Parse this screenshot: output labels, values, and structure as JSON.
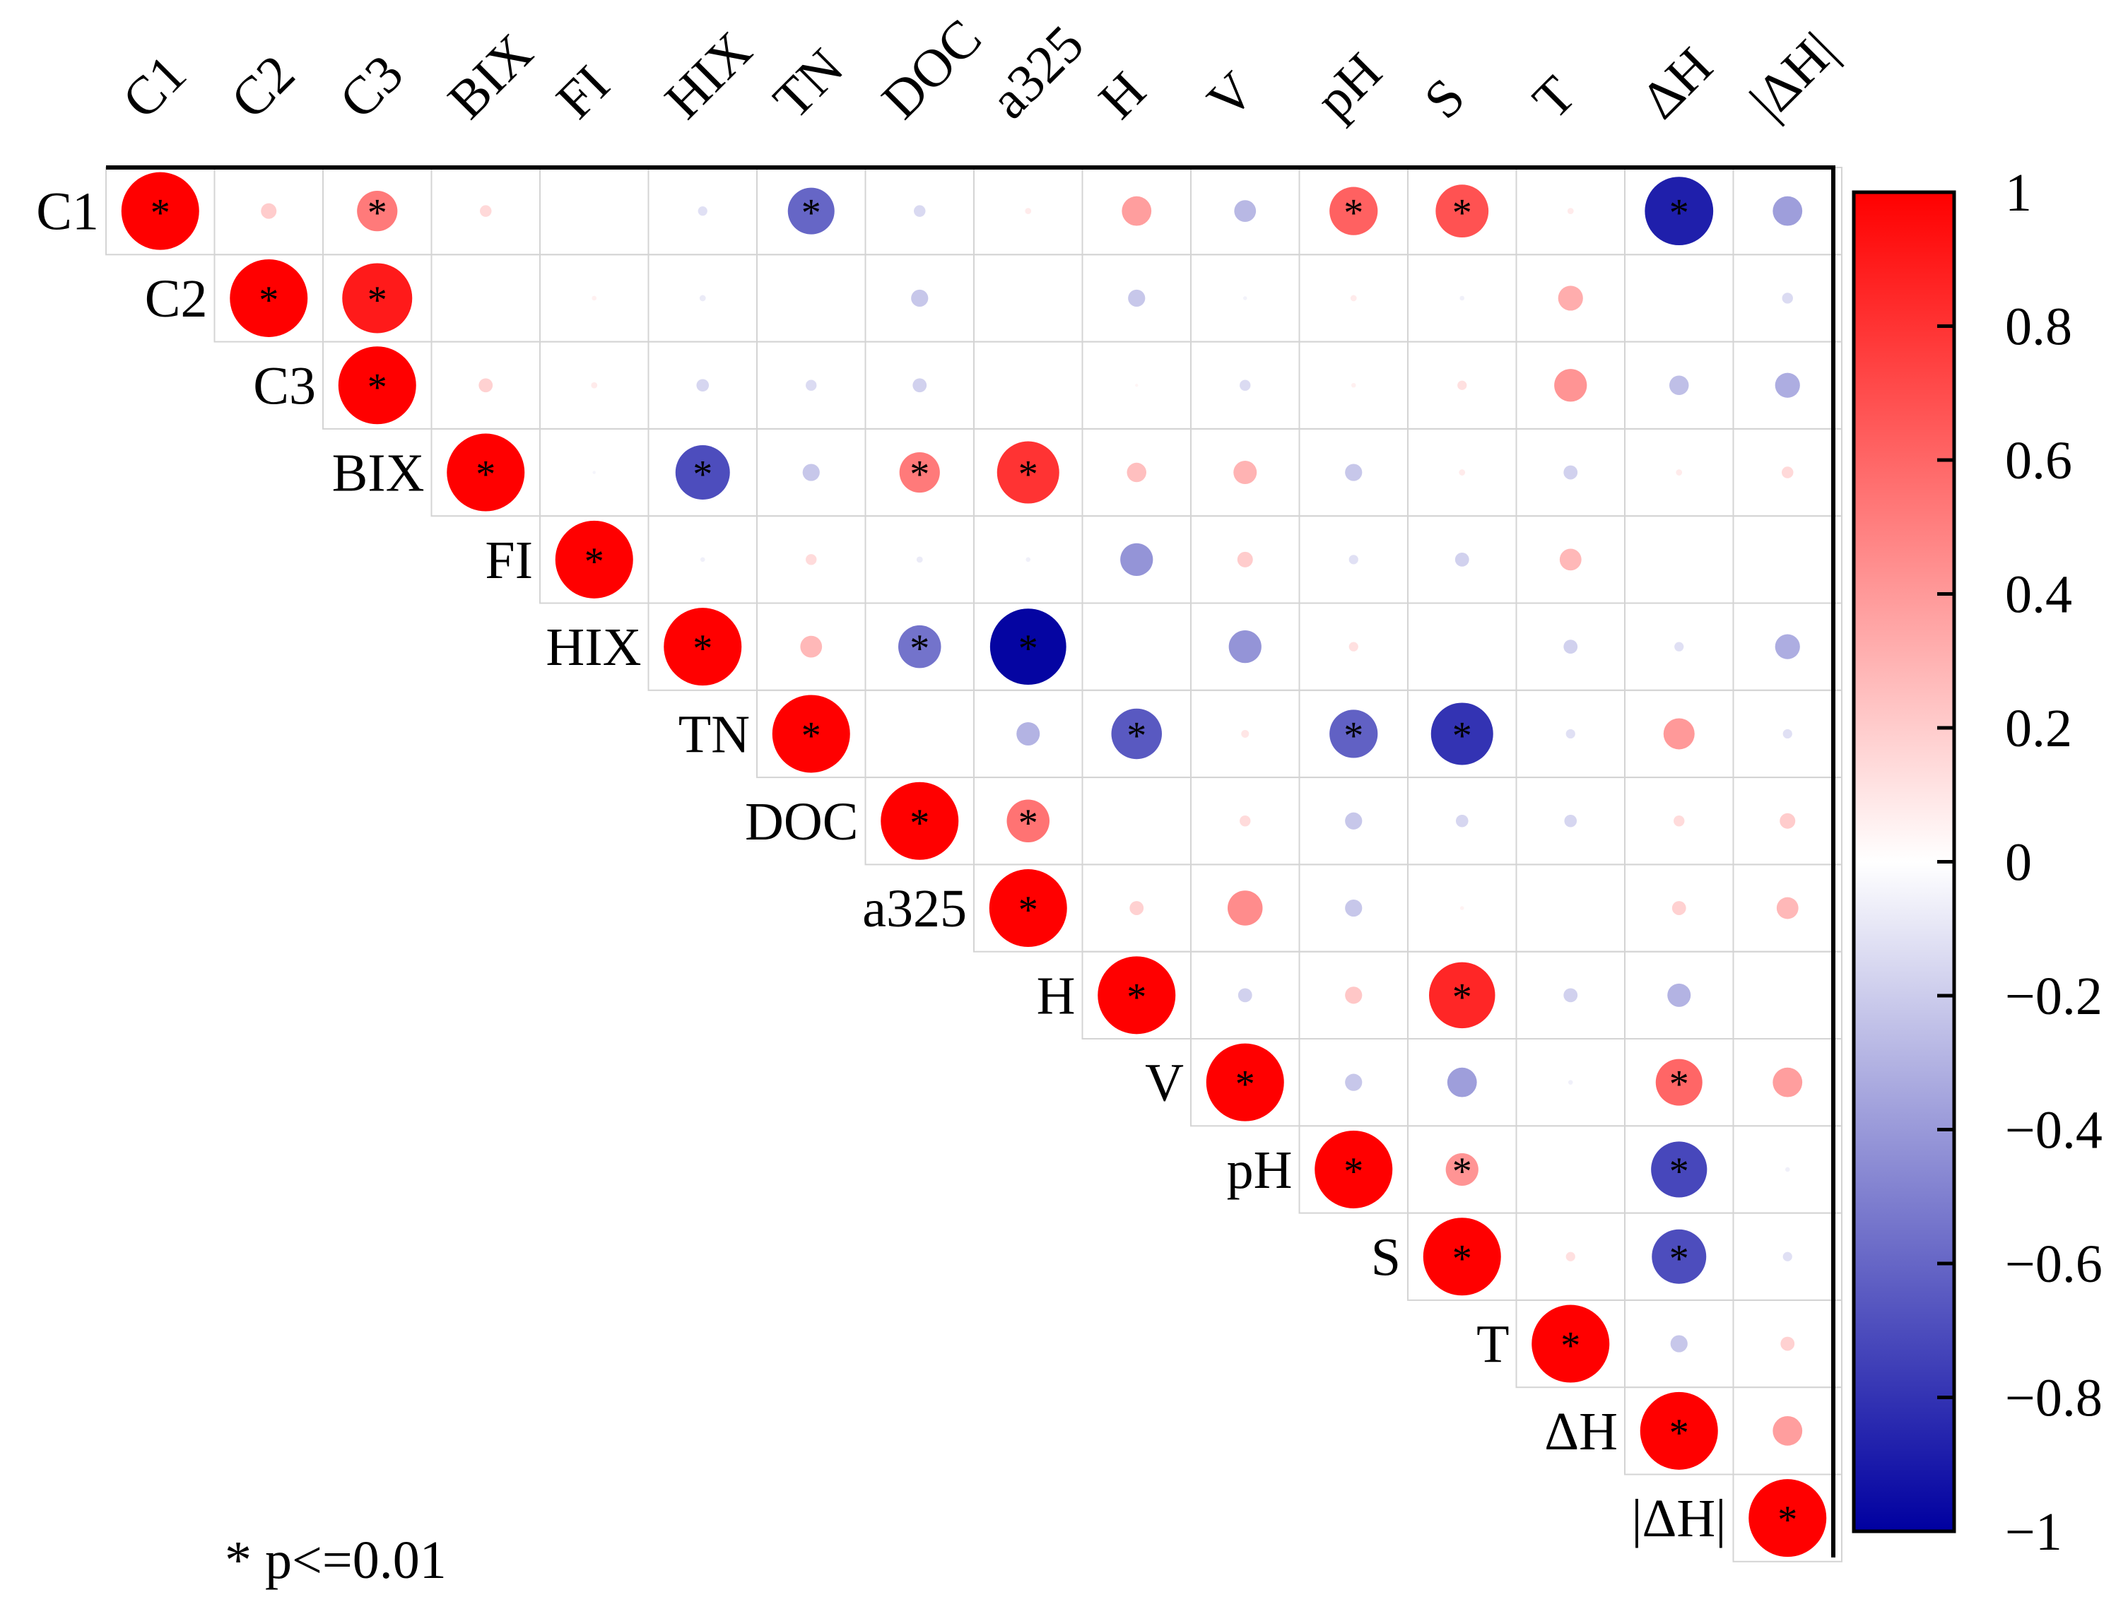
{
  "chart_data": {
    "type": "heatmap",
    "variables": [
      "C1",
      "C2",
      "C3",
      "BIX",
      "FI",
      "HIX",
      "TN",
      "DOC",
      "a325",
      "H",
      "V",
      "pH",
      "S",
      "T",
      "ΔH",
      "|ΔH|"
    ],
    "matrix_upper": [
      [
        1.0,
        0.2,
        0.52,
        0.15,
        0.0,
        -0.12,
        -0.6,
        -0.15,
        0.08,
        0.38,
        -0.28,
        0.62,
        0.68,
        0.08,
        -0.88,
        -0.38
      ],
      [
        null,
        1.0,
        0.9,
        0.0,
        0.06,
        -0.08,
        0.0,
        -0.22,
        0.0,
        -0.22,
        -0.05,
        0.08,
        -0.06,
        0.32,
        0.0,
        -0.14
      ],
      [
        null,
        null,
        1.0,
        0.18,
        0.08,
        -0.16,
        -0.14,
        -0.18,
        0.0,
        0.04,
        -0.14,
        0.06,
        0.12,
        0.42,
        -0.25,
        -0.32
      ],
      [
        null,
        null,
        null,
        1.0,
        -0.04,
        -0.7,
        -0.22,
        0.52,
        0.8,
        0.25,
        0.3,
        -0.22,
        0.08,
        -0.18,
        0.08,
        0.15
      ],
      [
        null,
        null,
        null,
        null,
        1.0,
        -0.06,
        0.14,
        -0.08,
        -0.06,
        -0.42,
        0.2,
        -0.12,
        -0.18,
        0.28,
        0.0,
        0.0
      ],
      [
        null,
        null,
        null,
        null,
        null,
        1.0,
        0.28,
        -0.55,
        -0.98,
        0.0,
        -0.42,
        0.12,
        0.0,
        -0.18,
        -0.12,
        -0.32
      ],
      [
        null,
        null,
        null,
        null,
        null,
        null,
        1.0,
        0.0,
        -0.3,
        -0.65,
        0.1,
        -0.62,
        -0.8,
        -0.12,
        0.4,
        -0.12
      ],
      [
        null,
        null,
        null,
        null,
        null,
        null,
        null,
        1.0,
        0.55,
        0.0,
        0.14,
        -0.22,
        -0.16,
        -0.16,
        0.14,
        0.2
      ],
      [
        null,
        null,
        null,
        null,
        null,
        null,
        null,
        null,
        1.0,
        0.18,
        0.45,
        -0.22,
        0.05,
        0.0,
        0.18,
        0.28
      ],
      [
        null,
        null,
        null,
        null,
        null,
        null,
        null,
        null,
        null,
        1.0,
        -0.18,
        0.22,
        0.85,
        -0.18,
        -0.3,
        0.0
      ],
      [
        null,
        null,
        null,
        null,
        null,
        null,
        null,
        null,
        null,
        null,
        1.0,
        -0.22,
        -0.38,
        -0.06,
        0.6,
        0.38
      ],
      [
        null,
        null,
        null,
        null,
        null,
        null,
        null,
        null,
        null,
        null,
        null,
        1.0,
        0.42,
        0.0,
        -0.72,
        -0.06
      ],
      [
        null,
        null,
        null,
        null,
        null,
        null,
        null,
        null,
        null,
        null,
        null,
        null,
        1.0,
        0.12,
        -0.7,
        -0.12
      ],
      [
        null,
        null,
        null,
        null,
        null,
        null,
        null,
        null,
        null,
        null,
        null,
        null,
        null,
        1.0,
        -0.22,
        0.18
      ],
      [
        null,
        null,
        null,
        null,
        null,
        null,
        null,
        null,
        null,
        null,
        null,
        null,
        null,
        null,
        1.0,
        0.38
      ],
      [
        null,
        null,
        null,
        null,
        null,
        null,
        null,
        null,
        null,
        null,
        null,
        null,
        null,
        null,
        null,
        1.0
      ]
    ],
    "significant_pairs": [
      [
        0,
        0
      ],
      [
        0,
        2
      ],
      [
        0,
        6
      ],
      [
        0,
        11
      ],
      [
        0,
        12
      ],
      [
        0,
        14
      ],
      [
        1,
        1
      ],
      [
        1,
        2
      ],
      [
        2,
        2
      ],
      [
        3,
        3
      ],
      [
        3,
        5
      ],
      [
        3,
        7
      ],
      [
        3,
        8
      ],
      [
        4,
        4
      ],
      [
        5,
        5
      ],
      [
        5,
        7
      ],
      [
        5,
        8
      ],
      [
        6,
        6
      ],
      [
        6,
        9
      ],
      [
        6,
        11
      ],
      [
        6,
        12
      ],
      [
        7,
        7
      ],
      [
        7,
        8
      ],
      [
        8,
        8
      ],
      [
        9,
        9
      ],
      [
        9,
        12
      ],
      [
        10,
        10
      ],
      [
        10,
        14
      ],
      [
        11,
        11
      ],
      [
        11,
        12
      ],
      [
        11,
        14
      ],
      [
        12,
        12
      ],
      [
        12,
        14
      ],
      [
        13,
        13
      ],
      [
        14,
        14
      ],
      [
        15,
        15
      ]
    ],
    "significance_marker": "*",
    "legend_note": "* p<=0.01",
    "colorbar": {
      "ticks": [
        1,
        0.8,
        0.6,
        0.4,
        0.2,
        0,
        -0.2,
        -0.4,
        -0.6,
        -0.8,
        -1
      ],
      "tick_labels": [
        "1",
        "0.8",
        "0.6",
        "0.4",
        "0.2",
        "0",
        "−0.2",
        "−0.4",
        "−0.6",
        "−0.8",
        "−1"
      ],
      "range": [
        -1,
        1
      ],
      "colors": {
        "high": "#ff0000",
        "mid": "#ffffff",
        "low": "#0000a0"
      }
    }
  }
}
